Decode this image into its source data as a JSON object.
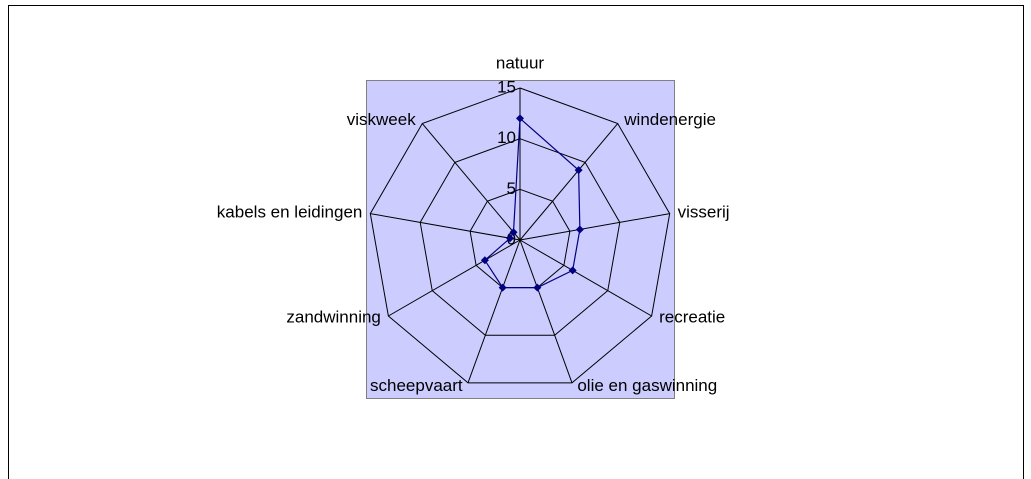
{
  "chart_data": {
    "type": "radar",
    "categories": [
      "natuur",
      "windenergie",
      "visserij",
      "recreatie",
      "olie en gaswinning",
      "scheepvaart",
      "zandwinning",
      "kabels en leidingen",
      "viskweek"
    ],
    "series": [
      {
        "color": "#000080",
        "values": [
          12,
          9,
          6,
          6,
          5,
          5,
          4,
          1,
          1
        ]
      }
    ],
    "ylim": [
      0,
      15
    ],
    "yticks": [
      0,
      5,
      10,
      15
    ],
    "grid": true,
    "background": "#ccccff"
  }
}
